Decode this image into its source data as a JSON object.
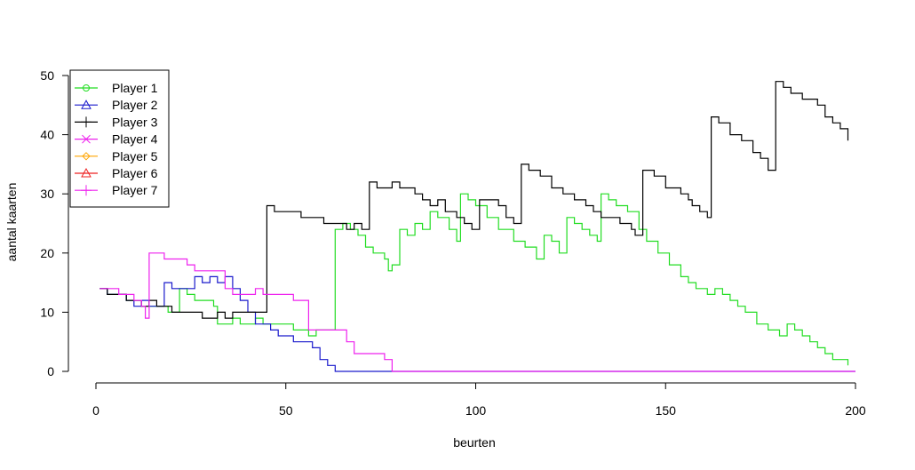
{
  "chart_data": {
    "type": "line",
    "title": "",
    "xlabel": "beurten",
    "ylabel": "aantal kaarten",
    "xlim": [
      0,
      200
    ],
    "ylim": [
      0,
      50
    ],
    "x_ticks": [
      0,
      50,
      100,
      150,
      200
    ],
    "y_ticks": [
      0,
      10,
      20,
      30,
      40,
      50
    ],
    "grid": false,
    "legend_position": "top-left",
    "series": [
      {
        "name": "Player 1",
        "color": "#22dd22",
        "marker": "circle",
        "points": [
          [
            1,
            14
          ],
          [
            3,
            13
          ],
          [
            6,
            13
          ],
          [
            8,
            12
          ],
          [
            10,
            12
          ],
          [
            12,
            11
          ],
          [
            15,
            11
          ],
          [
            17,
            11
          ],
          [
            19,
            10
          ],
          [
            21,
            10
          ],
          [
            22,
            14
          ],
          [
            24,
            13
          ],
          [
            26,
            12
          ],
          [
            29,
            12
          ],
          [
            31,
            11
          ],
          [
            32,
            8
          ],
          [
            34,
            8
          ],
          [
            36,
            9
          ],
          [
            38,
            8
          ],
          [
            40,
            8
          ],
          [
            42,
            9
          ],
          [
            44,
            8
          ],
          [
            50,
            8
          ],
          [
            52,
            7
          ],
          [
            56,
            6
          ],
          [
            58,
            7
          ],
          [
            60,
            7
          ],
          [
            62,
            7
          ],
          [
            63,
            24
          ],
          [
            65,
            25
          ],
          [
            67,
            24
          ],
          [
            69,
            23
          ],
          [
            71,
            21
          ],
          [
            73,
            20
          ],
          [
            76,
            19
          ],
          [
            77,
            17
          ],
          [
            78,
            18
          ],
          [
            80,
            24
          ],
          [
            82,
            23
          ],
          [
            84,
            25
          ],
          [
            86,
            24
          ],
          [
            88,
            27
          ],
          [
            90,
            26
          ],
          [
            93,
            24
          ],
          [
            95,
            22
          ],
          [
            96,
            30
          ],
          [
            98,
            29
          ],
          [
            100,
            28
          ],
          [
            103,
            26
          ],
          [
            106,
            24
          ],
          [
            110,
            22
          ],
          [
            113,
            21
          ],
          [
            116,
            19
          ],
          [
            118,
            23
          ],
          [
            120,
            22
          ],
          [
            122,
            20
          ],
          [
            124,
            26
          ],
          [
            126,
            25
          ],
          [
            128,
            24
          ],
          [
            130,
            23
          ],
          [
            132,
            22
          ],
          [
            133,
            30
          ],
          [
            135,
            29
          ],
          [
            137,
            28
          ],
          [
            140,
            27
          ],
          [
            143,
            24
          ],
          [
            145,
            22
          ],
          [
            148,
            20
          ],
          [
            151,
            18
          ],
          [
            154,
            16
          ],
          [
            156,
            15
          ],
          [
            158,
            14
          ],
          [
            161,
            13
          ],
          [
            163,
            14
          ],
          [
            165,
            13
          ],
          [
            167,
            12
          ],
          [
            169,
            11
          ],
          [
            171,
            10
          ],
          [
            174,
            8
          ],
          [
            177,
            7
          ],
          [
            180,
            6
          ],
          [
            182,
            8
          ],
          [
            184,
            7
          ],
          [
            186,
            6
          ],
          [
            188,
            5
          ],
          [
            190,
            4
          ],
          [
            192,
            3
          ],
          [
            194,
            2
          ],
          [
            196,
            2
          ],
          [
            198,
            1
          ]
        ]
      },
      {
        "name": "Player 2",
        "color": "#1a1acc",
        "marker": "triangle",
        "points": [
          [
            1,
            14
          ],
          [
            3,
            13
          ],
          [
            6,
            13
          ],
          [
            8,
            12
          ],
          [
            10,
            11
          ],
          [
            12,
            12
          ],
          [
            14,
            11
          ],
          [
            16,
            11
          ],
          [
            18,
            15
          ],
          [
            20,
            14
          ],
          [
            24,
            14
          ],
          [
            26,
            16
          ],
          [
            28,
            15
          ],
          [
            30,
            16
          ],
          [
            32,
            15
          ],
          [
            34,
            16
          ],
          [
            36,
            14
          ],
          [
            38,
            12
          ],
          [
            40,
            10
          ],
          [
            42,
            8
          ],
          [
            44,
            8
          ],
          [
            46,
            7
          ],
          [
            48,
            6
          ],
          [
            50,
            6
          ],
          [
            52,
            5
          ],
          [
            55,
            5
          ],
          [
            57,
            4
          ],
          [
            59,
            2
          ],
          [
            61,
            1
          ],
          [
            63,
            0
          ],
          [
            200,
            0
          ]
        ]
      },
      {
        "name": "Player 3",
        "color": "#000000",
        "marker": "plus",
        "points": [
          [
            1,
            14
          ],
          [
            3,
            13
          ],
          [
            5,
            13
          ],
          [
            8,
            12
          ],
          [
            10,
            12
          ],
          [
            12,
            11
          ],
          [
            14,
            12
          ],
          [
            16,
            11
          ],
          [
            18,
            11
          ],
          [
            20,
            10
          ],
          [
            24,
            10
          ],
          [
            28,
            9
          ],
          [
            30,
            9
          ],
          [
            32,
            10
          ],
          [
            34,
            9
          ],
          [
            36,
            10
          ],
          [
            40,
            10
          ],
          [
            44,
            10
          ],
          [
            45,
            28
          ],
          [
            47,
            27
          ],
          [
            52,
            27
          ],
          [
            54,
            26
          ],
          [
            58,
            26
          ],
          [
            60,
            25
          ],
          [
            64,
            25
          ],
          [
            66,
            24
          ],
          [
            68,
            25
          ],
          [
            70,
            24
          ],
          [
            72,
            32
          ],
          [
            74,
            31
          ],
          [
            78,
            32
          ],
          [
            80,
            31
          ],
          [
            84,
            30
          ],
          [
            86,
            29
          ],
          [
            88,
            28
          ],
          [
            90,
            29
          ],
          [
            92,
            27
          ],
          [
            95,
            26
          ],
          [
            97,
            25
          ],
          [
            99,
            24
          ],
          [
            101,
            29
          ],
          [
            104,
            29
          ],
          [
            106,
            28
          ],
          [
            108,
            26
          ],
          [
            110,
            25
          ],
          [
            112,
            35
          ],
          [
            114,
            34
          ],
          [
            117,
            33
          ],
          [
            120,
            31
          ],
          [
            123,
            30
          ],
          [
            126,
            29
          ],
          [
            129,
            28
          ],
          [
            131,
            27
          ],
          [
            133,
            26
          ],
          [
            136,
            26
          ],
          [
            138,
            25
          ],
          [
            141,
            24
          ],
          [
            142,
            23
          ],
          [
            144,
            34
          ],
          [
            147,
            33
          ],
          [
            150,
            31
          ],
          [
            154,
            30
          ],
          [
            156,
            29
          ],
          [
            157,
            28
          ],
          [
            159,
            27
          ],
          [
            161,
            26
          ],
          [
            162,
            43
          ],
          [
            164,
            42
          ],
          [
            167,
            40
          ],
          [
            170,
            39
          ],
          [
            173,
            37
          ],
          [
            175,
            36
          ],
          [
            177,
            34
          ],
          [
            178,
            34
          ],
          [
            179,
            49
          ],
          [
            181,
            48
          ],
          [
            183,
            47
          ],
          [
            186,
            46
          ],
          [
            188,
            46
          ],
          [
            190,
            45
          ],
          [
            192,
            43
          ],
          [
            194,
            42
          ],
          [
            196,
            41
          ],
          [
            198,
            39
          ]
        ]
      },
      {
        "name": "Player 4",
        "color": "#ee22ee",
        "marker": "cross",
        "points": []
      },
      {
        "name": "Player 5",
        "color": "#ffa500",
        "marker": "diamond",
        "points": []
      },
      {
        "name": "Player 6",
        "color": "#ee2222",
        "marker": "triangle",
        "points": []
      },
      {
        "name": "Player 7",
        "color": "#ee22ee",
        "marker": "plus",
        "points": [
          [
            1,
            14
          ],
          [
            3,
            14
          ],
          [
            6,
            13
          ],
          [
            8,
            13
          ],
          [
            10,
            12
          ],
          [
            12,
            11
          ],
          [
            13,
            9
          ],
          [
            14,
            20
          ],
          [
            16,
            20
          ],
          [
            18,
            19
          ],
          [
            22,
            19
          ],
          [
            24,
            18
          ],
          [
            26,
            17
          ],
          [
            28,
            17
          ],
          [
            30,
            17
          ],
          [
            32,
            17
          ],
          [
            34,
            14
          ],
          [
            36,
            13
          ],
          [
            38,
            13
          ],
          [
            40,
            13
          ],
          [
            42,
            14
          ],
          [
            44,
            13
          ],
          [
            50,
            13
          ],
          [
            52,
            12
          ],
          [
            54,
            12
          ],
          [
            56,
            7
          ],
          [
            60,
            7
          ],
          [
            62,
            7
          ],
          [
            66,
            5
          ],
          [
            68,
            3
          ],
          [
            74,
            3
          ],
          [
            76,
            2
          ],
          [
            78,
            0
          ],
          [
            200,
            0
          ]
        ]
      }
    ]
  }
}
